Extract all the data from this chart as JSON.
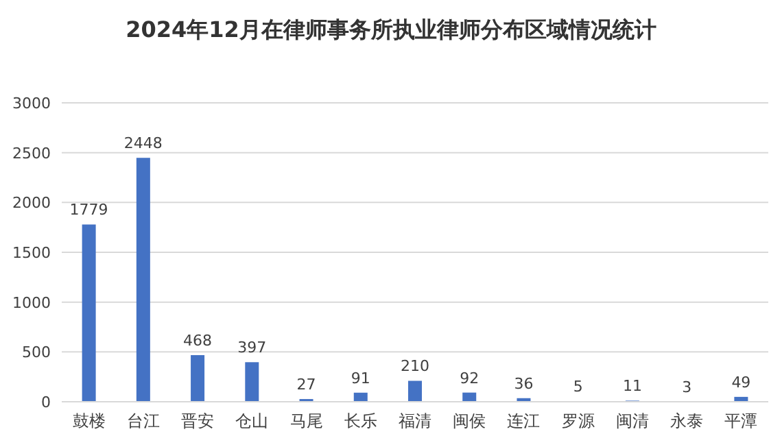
{
  "chart_data": {
    "type": "bar",
    "title": "2024年12月在律师事务所执业律师分布区域情况统计",
    "categories": [
      "鼓楼",
      "台江",
      "晋安",
      "仓山",
      "马尾",
      "长乐",
      "福清",
      "闽侯",
      "连江",
      "罗源",
      "闽清",
      "永泰",
      "平潭"
    ],
    "values": [
      1779,
      2448,
      468,
      397,
      27,
      91,
      210,
      92,
      36,
      5,
      11,
      3,
      49
    ],
    "color": "#4472c4",
    "ylim": [
      0,
      3000
    ],
    "yticks": [
      0,
      500,
      1000,
      1500,
      2000,
      2500,
      3000
    ],
    "grid": "y",
    "data_labels": true
  }
}
